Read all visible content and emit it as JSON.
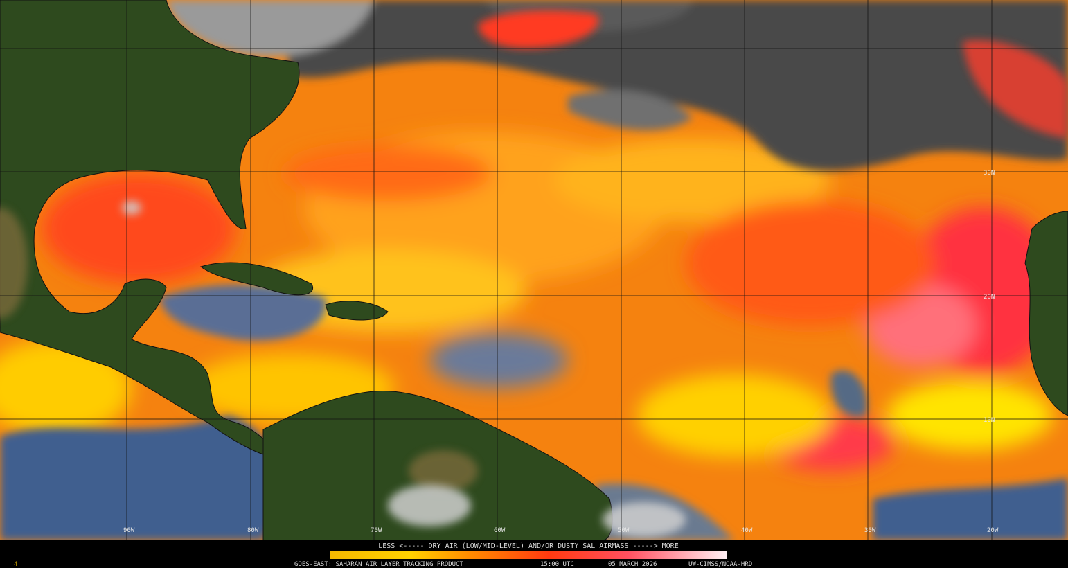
{
  "map": {
    "legend_title": "LESS <----- DRY AIR (LOW/MID-LEVEL) AND/OR DUSTY SAL AIRMASS -----> MORE",
    "longitude_labels": [
      "90W",
      "80W",
      "70W",
      "60W",
      "50W",
      "40W",
      "30W",
      "20W"
    ],
    "latitude_labels": [
      "30N",
      "20N",
      "10N"
    ],
    "footer": {
      "product": "GOES-EAST: SAHARAN AIR LAYER TRACKING PRODUCT",
      "time": "15:00 UTC",
      "date": "05 MARCH 2026",
      "credit": "UW-CIMSS/NOAA-HRD"
    },
    "frame_number": "4"
  }
}
